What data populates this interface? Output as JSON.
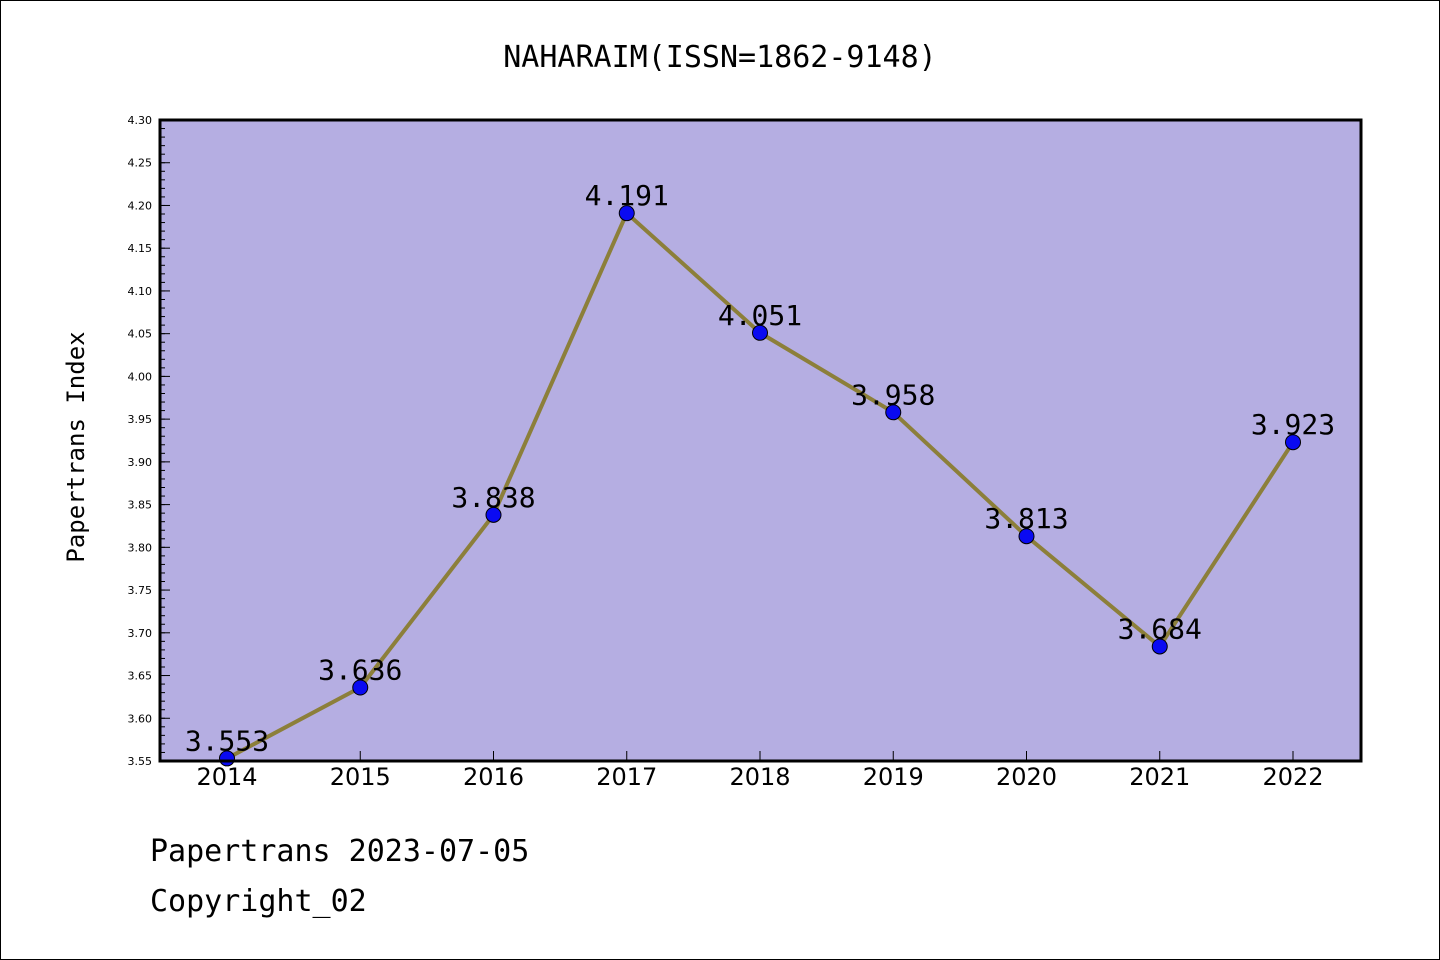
{
  "chart_data": {
    "type": "line",
    "title": "NAHARAIM(ISSN=1862-9148)",
    "ylabel": "Papertrans Index",
    "xlabel": "",
    "categories": [
      "2014",
      "2015",
      "2016",
      "2017",
      "2018",
      "2019",
      "2020",
      "2021",
      "2022"
    ],
    "series": [
      {
        "values": [
          3.553,
          3.636,
          3.838,
          4.191,
          4.051,
          3.958,
          3.813,
          3.684,
          3.923
        ],
        "labels": [
          "3.553",
          "3.636",
          "3.838",
          "4.191",
          "4.051",
          "3.958",
          "3.813",
          "3.684",
          "3.923"
        ]
      }
    ],
    "ylim": [
      3.55,
      4.3
    ],
    "yticks": [
      "3.55",
      "3.60",
      "3.65",
      "3.70",
      "3.75",
      "3.80",
      "3.85",
      "3.90",
      "3.95",
      "4.00",
      "4.05",
      "4.10",
      "4.15",
      "4.20",
      "4.25",
      "4.30"
    ],
    "grid": false,
    "colors": {
      "plot_background": "#b5aee2",
      "line": "#8c7f3a",
      "marker": "#0a0af2"
    }
  },
  "footer": {
    "line1": "Papertrans 2023-07-05",
    "line2": "Copyright_02"
  }
}
